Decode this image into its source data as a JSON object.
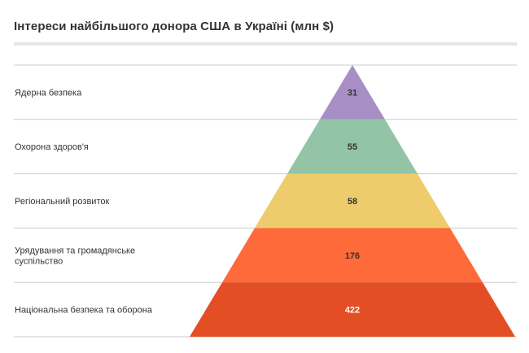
{
  "title": "Інтереси найбільшого донора США в Україні (млн $)",
  "chart_data": {
    "type": "pyramid",
    "title": "Інтереси найбільшого донора США в Україні (млн $)",
    "categories": [
      "Ядерна безпека",
      "Охорона здоров'я",
      "Регіональний розвиток",
      "Урядування та громадянське суспільство",
      "Національна безпека та оборона"
    ],
    "values": [
      31,
      55,
      58,
      176,
      422
    ],
    "colors": [
      "#a78fc5",
      "#93c4a6",
      "#eecc6c",
      "#fe6a3a",
      "#e34e25"
    ],
    "value_label_colors": [
      "#333333",
      "#333333",
      "#333333",
      "#333333",
      "#ffffff"
    ]
  }
}
